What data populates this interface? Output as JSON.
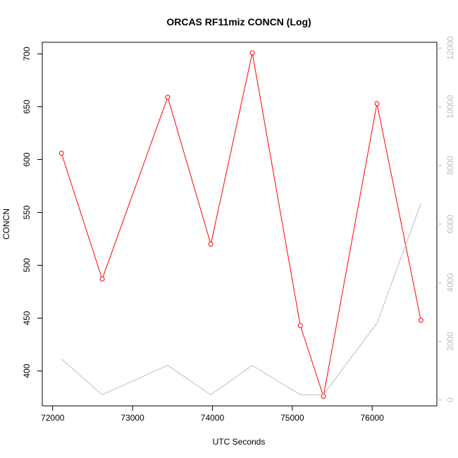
{
  "chart_data": {
    "type": "line",
    "title": "ORCAS RF11miz CONCN (Log)",
    "xlabel": "UTC Seconds",
    "ylabel": "CONCN",
    "xlim": [
      71870,
      76810
    ],
    "ylim": [
      367,
      711
    ],
    "y2lim": [
      -200,
      12200
    ],
    "x_ticks": [
      72000,
      73000,
      74000,
      75000,
      76000
    ],
    "y_ticks": [
      400,
      450,
      500,
      550,
      600,
      650,
      700
    ],
    "y2_ticks": [
      0,
      2000,
      4000,
      6000,
      8000,
      10000,
      12000
    ],
    "grid": false,
    "series": [
      {
        "axis": "left",
        "color": "#ff0000",
        "markers": "open-circle",
        "x": [
          72110,
          72620,
          73440,
          73980,
          74500,
          75100,
          75390,
          76060,
          76610
        ],
        "values": [
          606,
          487,
          659,
          520,
          701,
          443,
          376,
          653,
          448
        ]
      },
      {
        "axis": "right",
        "color": "#bebebe",
        "markers": "none",
        "x": [
          72110,
          72620,
          73440,
          73980,
          74500,
          75100,
          75390,
          76060,
          76610
        ],
        "values": [
          1400,
          180,
          1180,
          180,
          1180,
          180,
          180,
          2620,
          6700
        ]
      }
    ]
  }
}
